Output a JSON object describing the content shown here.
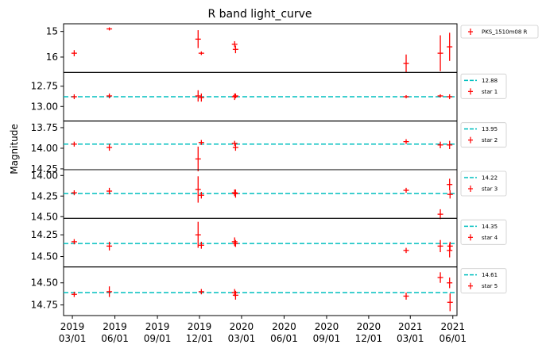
{
  "chart_data": {
    "type": "scatter",
    "title": "R band light_curve",
    "ylabel": "Magnitude",
    "y_inverted": true,
    "x_axis": {
      "type": "date",
      "range": [
        "2019-02-10",
        "2021-06-10"
      ],
      "ticks": [
        {
          "date": "2019-03-01",
          "label": [
            "2019",
            "03/01"
          ]
        },
        {
          "date": "2019-06-01",
          "label": [
            "2019",
            "06/01"
          ]
        },
        {
          "date": "2019-09-01",
          "label": [
            "2019",
            "09/01"
          ]
        },
        {
          "date": "2019-12-01",
          "label": [
            "2019",
            "12/01"
          ]
        },
        {
          "date": "2020-03-01",
          "label": [
            "2020",
            "03/01"
          ]
        },
        {
          "date": "2020-06-01",
          "label": [
            "2020",
            "06/01"
          ]
        },
        {
          "date": "2020-09-01",
          "label": [
            "2020",
            "09/01"
          ]
        },
        {
          "date": "2020-12-01",
          "label": [
            "2020",
            "12/01"
          ]
        },
        {
          "date": "2021-03-01",
          "label": [
            "2021",
            "03/01"
          ]
        },
        {
          "date": "2021-06-01",
          "label": [
            "2021",
            "06/01"
          ]
        }
      ]
    },
    "grid": false,
    "legend_position": "right",
    "colors": {
      "points": "#ff0000",
      "mean_line": "#00bfbf"
    },
    "panels": [
      {
        "name": "PKS_1510m08 R",
        "ylim": [
          16.6,
          14.7
        ],
        "yticks": [
          15,
          16
        ],
        "ytick_labels": [
          "15",
          "16"
        ],
        "mean": null,
        "points": [
          {
            "x": "2019-03-05",
            "y": 15.85,
            "err": 0.12
          },
          {
            "x": "2019-05-20",
            "y": 14.9,
            "err": 0.06
          },
          {
            "x": "2019-11-28",
            "y": 15.3,
            "err": 0.35
          },
          {
            "x": "2019-12-05",
            "y": 15.85,
            "err": 0.07
          },
          {
            "x": "2020-02-15",
            "y": 15.5,
            "err": 0.12
          },
          {
            "x": "2020-02-17",
            "y": 15.7,
            "err": 0.15
          },
          {
            "x": "2021-02-20",
            "y": 16.25,
            "err": 0.35
          },
          {
            "x": "2021-05-05",
            "y": 15.85,
            "err": 0.7
          },
          {
            "x": "2021-05-25",
            "y": 15.6,
            "err": 0.55
          }
        ]
      },
      {
        "name": "star 1",
        "ylim": [
          13.18,
          12.58
        ],
        "yticks": [
          12.75,
          13.0
        ],
        "ytick_labels": [
          "12.75",
          "13.00"
        ],
        "mean": 12.88,
        "mean_label": "12.88",
        "points": [
          {
            "x": "2019-03-05",
            "y": 12.88,
            "err": 0.03
          },
          {
            "x": "2019-05-20",
            "y": 12.87,
            "err": 0.03
          },
          {
            "x": "2019-11-28",
            "y": 12.87,
            "err": 0.07
          },
          {
            "x": "2019-12-05",
            "y": 12.89,
            "err": 0.05
          },
          {
            "x": "2020-02-15",
            "y": 12.88,
            "err": 0.04
          },
          {
            "x": "2020-02-17",
            "y": 12.87,
            "err": 0.03
          },
          {
            "x": "2021-02-20",
            "y": 12.88,
            "err": 0.02
          },
          {
            "x": "2021-05-05",
            "y": 12.87,
            "err": 0.02
          },
          {
            "x": "2021-05-25",
            "y": 12.88,
            "err": 0.03
          }
        ]
      },
      {
        "name": "star 2",
        "ylim": [
          14.26,
          13.67
        ],
        "yticks": [
          13.75,
          14.0,
          14.25
        ],
        "ytick_labels": [
          "13.75",
          "14.00",
          "14.25"
        ],
        "mean": 13.95,
        "mean_label": "13.95",
        "points": [
          {
            "x": "2019-03-05",
            "y": 13.95,
            "err": 0.03
          },
          {
            "x": "2019-05-20",
            "y": 13.99,
            "err": 0.04
          },
          {
            "x": "2019-11-28",
            "y": 14.13,
            "err": 0.15
          },
          {
            "x": "2019-12-05",
            "y": 13.93,
            "err": 0.03
          },
          {
            "x": "2020-02-15",
            "y": 13.94,
            "err": 0.03
          },
          {
            "x": "2020-02-17",
            "y": 13.99,
            "err": 0.04
          },
          {
            "x": "2021-02-20",
            "y": 13.92,
            "err": 0.03
          },
          {
            "x": "2021-05-05",
            "y": 13.96,
            "err": 0.04
          },
          {
            "x": "2021-05-25",
            "y": 13.96,
            "err": 0.05
          }
        ]
      },
      {
        "name": "star 3",
        "ylim": [
          14.52,
          13.93
        ],
        "yticks": [
          14.0,
          14.25,
          14.5
        ],
        "ytick_labels": [
          "14.00",
          "14.25",
          "14.50"
        ],
        "mean": 14.22,
        "mean_label": "14.22",
        "points": [
          {
            "x": "2019-03-05",
            "y": 14.21,
            "err": 0.03
          },
          {
            "x": "2019-05-20",
            "y": 14.19,
            "err": 0.04
          },
          {
            "x": "2019-11-28",
            "y": 14.17,
            "err": 0.16
          },
          {
            "x": "2019-12-05",
            "y": 14.24,
            "err": 0.04
          },
          {
            "x": "2020-02-15",
            "y": 14.21,
            "err": 0.04
          },
          {
            "x": "2020-02-17",
            "y": 14.22,
            "err": 0.05
          },
          {
            "x": "2021-02-20",
            "y": 14.18,
            "err": 0.03
          },
          {
            "x": "2021-05-05",
            "y": 14.47,
            "err": 0.06
          },
          {
            "x": "2021-05-25",
            "y": 14.11,
            "err": 0.07
          },
          {
            "x": "2021-05-26",
            "y": 14.23,
            "err": 0.05
          }
        ]
      },
      {
        "name": "star 4",
        "ylim": [
          14.62,
          14.06
        ],
        "yticks": [
          14.25,
          14.5
        ],
        "ytick_labels": [
          "14.25",
          "14.50"
        ],
        "mean": 14.35,
        "mean_label": "14.35",
        "points": [
          {
            "x": "2019-03-05",
            "y": 14.33,
            "err": 0.03
          },
          {
            "x": "2019-05-20",
            "y": 14.38,
            "err": 0.05
          },
          {
            "x": "2019-11-28",
            "y": 14.25,
            "err": 0.15
          },
          {
            "x": "2019-12-05",
            "y": 14.37,
            "err": 0.04
          },
          {
            "x": "2020-02-15",
            "y": 14.33,
            "err": 0.05
          },
          {
            "x": "2020-02-17",
            "y": 14.35,
            "err": 0.04
          },
          {
            "x": "2021-02-20",
            "y": 14.43,
            "err": 0.03
          },
          {
            "x": "2021-05-05",
            "y": 14.38,
            "err": 0.07
          },
          {
            "x": "2021-05-25",
            "y": 14.43,
            "err": 0.08
          },
          {
            "x": "2021-05-26",
            "y": 14.38,
            "err": 0.05
          }
        ]
      },
      {
        "name": "star 5",
        "ylim": [
          14.87,
          14.32
        ],
        "yticks": [
          14.5,
          14.75
        ],
        "ytick_labels": [
          "14.50",
          "14.75"
        ],
        "mean": 14.61,
        "mean_label": "14.61",
        "points": [
          {
            "x": "2019-03-05",
            "y": 14.63,
            "err": 0.03
          },
          {
            "x": "2019-05-20",
            "y": 14.6,
            "err": 0.06
          },
          {
            "x": "2019-12-05",
            "y": 14.6,
            "err": 0.03
          },
          {
            "x": "2020-02-15",
            "y": 14.61,
            "err": 0.04
          },
          {
            "x": "2020-02-17",
            "y": 14.64,
            "err": 0.05
          },
          {
            "x": "2021-02-20",
            "y": 14.65,
            "err": 0.04
          },
          {
            "x": "2021-05-05",
            "y": 14.44,
            "err": 0.06
          },
          {
            "x": "2021-05-25",
            "y": 14.5,
            "err": 0.06
          },
          {
            "x": "2021-05-26",
            "y": 14.72,
            "err": 0.1
          }
        ]
      }
    ]
  }
}
